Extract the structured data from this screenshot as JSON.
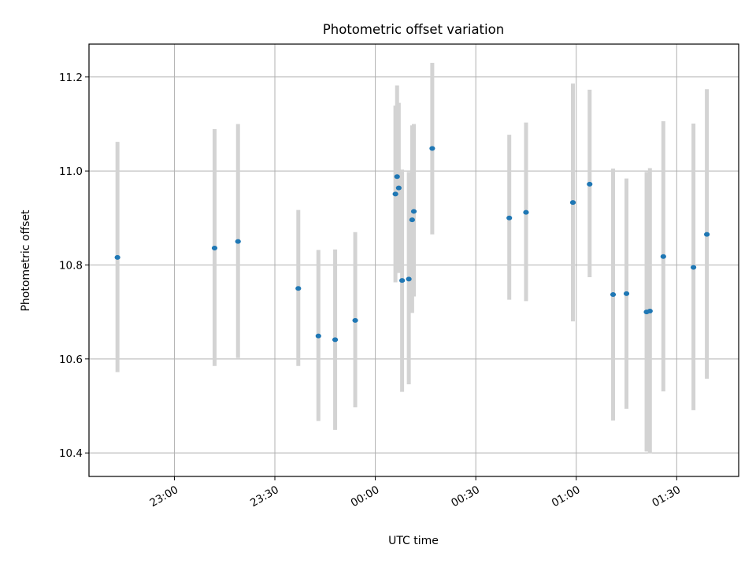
{
  "chart_data": {
    "type": "scatter",
    "title": "Photometric offset variation",
    "xlabel": "UTC time",
    "ylabel": "Photometric offset",
    "xlim": [
      "22:34:30",
      "01:48:30"
    ],
    "ylim": [
      10.35,
      11.27
    ],
    "x_ticks": [
      "23:00",
      "23:30",
      "00:00",
      "00:30",
      "01:00",
      "01:30"
    ],
    "y_ticks": [
      "10.4",
      "10.6",
      "10.8",
      "11.0",
      "11.2"
    ],
    "grid": true,
    "colors": {
      "point": "#1f77b4",
      "errorbar": "#d3d3d3",
      "grid": "#b0b0b0"
    },
    "points": [
      {
        "time": "22:43",
        "y": 10.816,
        "low": 10.572,
        "high": 11.062
      },
      {
        "time": "23:12",
        "y": 10.836,
        "low": 10.585,
        "high": 11.089
      },
      {
        "time": "23:19",
        "y": 10.85,
        "low": 10.602,
        "high": 11.1
      },
      {
        "time": "23:37",
        "y": 10.75,
        "low": 10.585,
        "high": 10.917
      },
      {
        "time": "23:43",
        "y": 10.649,
        "low": 10.468,
        "high": 10.832
      },
      {
        "time": "23:48",
        "y": 10.641,
        "low": 10.449,
        "high": 10.833
      },
      {
        "time": "23:54",
        "y": 10.682,
        "low": 10.497,
        "high": 10.87
      },
      {
        "time": "00:06",
        "y": 10.951,
        "low": 10.763,
        "high": 11.139
      },
      {
        "time": "00:06:30",
        "y": 10.988,
        "low": 10.794,
        "high": 11.182
      },
      {
        "time": "00:07",
        "y": 10.964,
        "low": 10.783,
        "high": 11.145
      },
      {
        "time": "00:08",
        "y": 10.767,
        "low": 10.53,
        "high": 11.003
      },
      {
        "time": "00:10",
        "y": 10.77,
        "low": 10.546,
        "high": 10.998
      },
      {
        "time": "00:11",
        "y": 10.896,
        "low": 10.698,
        "high": 11.097
      },
      {
        "time": "00:11:30",
        "y": 10.914,
        "low": 10.733,
        "high": 11.1
      },
      {
        "time": "00:17",
        "y": 11.048,
        "low": 10.865,
        "high": 11.23
      },
      {
        "time": "00:40",
        "y": 10.9,
        "low": 10.726,
        "high": 11.077
      },
      {
        "time": "00:45",
        "y": 10.912,
        "low": 10.723,
        "high": 11.103
      },
      {
        "time": "00:59",
        "y": 10.933,
        "low": 10.68,
        "high": 11.186
      },
      {
        "time": "01:04",
        "y": 10.972,
        "low": 10.774,
        "high": 11.173
      },
      {
        "time": "01:11",
        "y": 10.737,
        "low": 10.469,
        "high": 11.005
      },
      {
        "time": "01:15",
        "y": 10.739,
        "low": 10.494,
        "high": 10.984
      },
      {
        "time": "01:21",
        "y": 10.7,
        "low": 10.403,
        "high": 10.998
      },
      {
        "time": "01:22",
        "y": 10.702,
        "low": 10.399,
        "high": 11.006
      },
      {
        "time": "01:26",
        "y": 10.818,
        "low": 10.531,
        "high": 11.106
      },
      {
        "time": "01:35",
        "y": 10.795,
        "low": 10.491,
        "high": 11.101
      },
      {
        "time": "01:39",
        "y": 10.865,
        "low": 10.558,
        "high": 11.174
      }
    ]
  }
}
